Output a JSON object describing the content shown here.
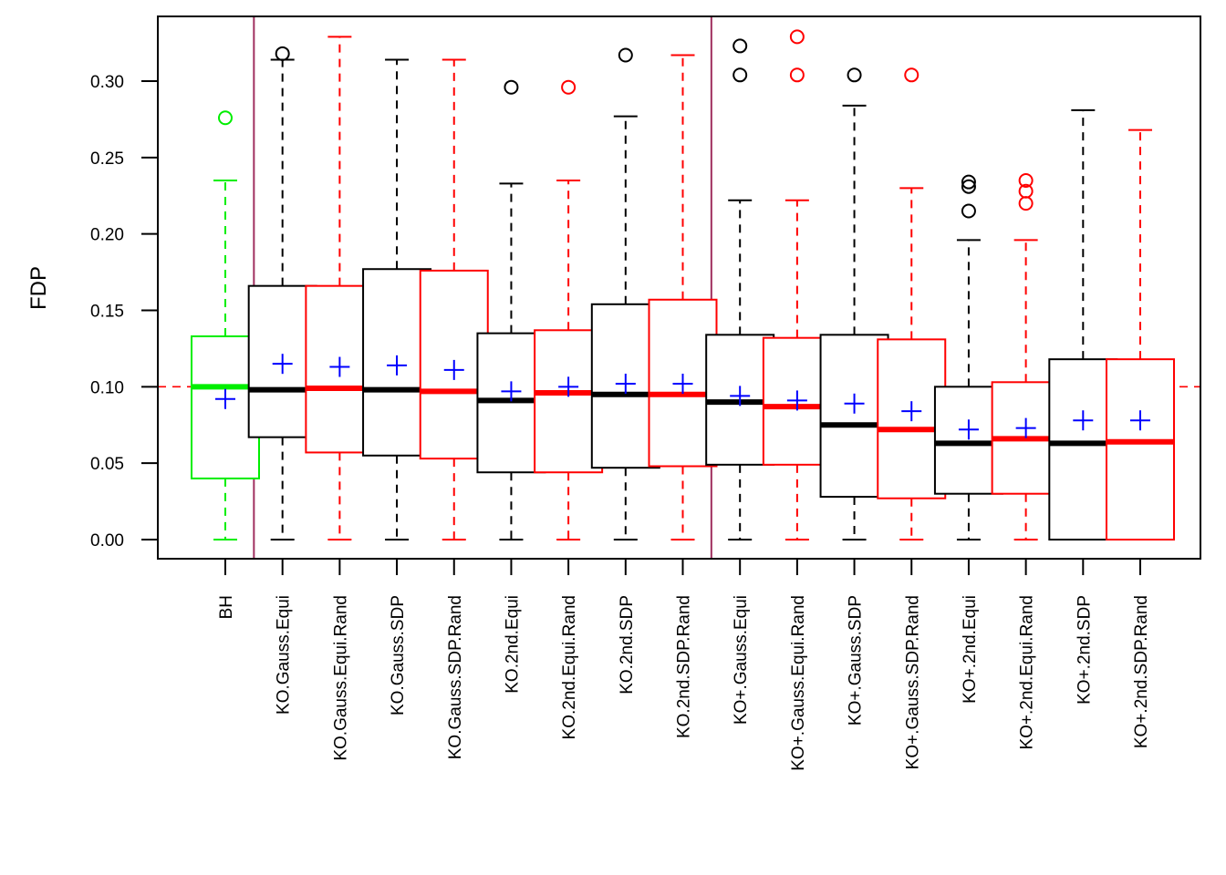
{
  "chart_data": {
    "type": "boxplot",
    "title": "",
    "xlabel": "",
    "ylabel": "FDP",
    "ylim": [
      -0.013,
      0.342
    ],
    "yticks": [
      0.0,
      0.05,
      0.1,
      0.15,
      0.2,
      0.25,
      0.3
    ],
    "ytick_labels": [
      "0.00",
      "0.05",
      "0.10",
      "0.15",
      "0.20",
      "0.25",
      "0.30"
    ],
    "reference_line": {
      "value": 0.1,
      "color": "#ff0000",
      "style": "dashed"
    },
    "group_separators_after_index": [
      0,
      8
    ],
    "separator_color": "#a0305f",
    "mean_marker": {
      "symbol": "+",
      "color": "#0000ff"
    },
    "categories": [
      "BH",
      "KO.Gauss.Equi",
      "KO.Gauss.Equi.Rand",
      "KO.Gauss.SDP",
      "KO.Gauss.SDP.Rand",
      "KO.2nd.Equi",
      "KO.2nd.Equi.Rand",
      "KO.2nd.SDP",
      "KO.2nd.SDP.Rand",
      "KO+.Gauss.Equi",
      "KO+.Gauss.Equi.Rand",
      "KO+.Gauss.SDP",
      "KO+.Gauss.SDP.Rand",
      "KO+.2nd.Equi",
      "KO+.2nd.Equi.Rand",
      "KO+.2nd.SDP",
      "KO+.2nd.SDP.Rand"
    ],
    "boxes": [
      {
        "name": "BH",
        "color": "#00ee00",
        "whisker_low": 0.0,
        "q1": 0.04,
        "median": 0.1,
        "q3": 0.133,
        "whisker_high": 0.235,
        "mean": 0.092,
        "outliers": [
          0.276
        ]
      },
      {
        "name": "KO.Gauss.Equi",
        "color": "#000000",
        "whisker_low": 0.0,
        "q1": 0.067,
        "median": 0.098,
        "q3": 0.166,
        "whisker_high": 0.314,
        "mean": 0.115,
        "outliers": [
          0.318
        ]
      },
      {
        "name": "KO.Gauss.Equi.Rand",
        "color": "#ff0000",
        "whisker_low": 0.0,
        "q1": 0.057,
        "median": 0.099,
        "q3": 0.166,
        "whisker_high": 0.329,
        "mean": 0.113,
        "outliers": []
      },
      {
        "name": "KO.Gauss.SDP",
        "color": "#000000",
        "whisker_low": 0.0,
        "q1": 0.055,
        "median": 0.098,
        "q3": 0.177,
        "whisker_high": 0.314,
        "mean": 0.114,
        "outliers": []
      },
      {
        "name": "KO.Gauss.SDP.Rand",
        "color": "#ff0000",
        "whisker_low": 0.0,
        "q1": 0.053,
        "median": 0.097,
        "q3": 0.176,
        "whisker_high": 0.314,
        "mean": 0.111,
        "outliers": []
      },
      {
        "name": "KO.2nd.Equi",
        "color": "#000000",
        "whisker_low": 0.0,
        "q1": 0.044,
        "median": 0.091,
        "q3": 0.135,
        "whisker_high": 0.233,
        "mean": 0.097,
        "outliers": [
          0.296
        ]
      },
      {
        "name": "KO.2nd.Equi.Rand",
        "color": "#ff0000",
        "whisker_low": 0.0,
        "q1": 0.044,
        "median": 0.096,
        "q3": 0.137,
        "whisker_high": 0.235,
        "mean": 0.1,
        "outliers": [
          0.296
        ]
      },
      {
        "name": "KO.2nd.SDP",
        "color": "#000000",
        "whisker_low": 0.0,
        "q1": 0.047,
        "median": 0.095,
        "q3": 0.154,
        "whisker_high": 0.277,
        "mean": 0.102,
        "outliers": [
          0.317
        ]
      },
      {
        "name": "KO.2nd.SDP.Rand",
        "color": "#ff0000",
        "whisker_low": 0.0,
        "q1": 0.048,
        "median": 0.095,
        "q3": 0.157,
        "whisker_high": 0.317,
        "mean": 0.102,
        "outliers": []
      },
      {
        "name": "KO+.Gauss.Equi",
        "color": "#000000",
        "whisker_low": 0.0,
        "q1": 0.049,
        "median": 0.09,
        "q3": 0.134,
        "whisker_high": 0.222,
        "mean": 0.094,
        "outliers": [
          0.304,
          0.323
        ]
      },
      {
        "name": "KO+.Gauss.Equi.Rand",
        "color": "#ff0000",
        "whisker_low": 0.0,
        "q1": 0.049,
        "median": 0.087,
        "q3": 0.132,
        "whisker_high": 0.222,
        "mean": 0.091,
        "outliers": [
          0.304,
          0.329
        ]
      },
      {
        "name": "KO+.Gauss.SDP",
        "color": "#000000",
        "whisker_low": 0.0,
        "q1": 0.028,
        "median": 0.075,
        "q3": 0.134,
        "whisker_high": 0.284,
        "mean": 0.089,
        "outliers": [
          0.304
        ]
      },
      {
        "name": "KO+.Gauss.SDP.Rand",
        "color": "#ff0000",
        "whisker_low": 0.0,
        "q1": 0.027,
        "median": 0.072,
        "q3": 0.131,
        "whisker_high": 0.23,
        "mean": 0.084,
        "outliers": [
          0.304
        ]
      },
      {
        "name": "KO+.2nd.Equi",
        "color": "#000000",
        "whisker_low": 0.0,
        "q1": 0.03,
        "median": 0.063,
        "q3": 0.1,
        "whisker_high": 0.196,
        "mean": 0.072,
        "outliers": [
          0.215,
          0.231,
          0.234
        ]
      },
      {
        "name": "KO+.2nd.Equi.Rand",
        "color": "#ff0000",
        "whisker_low": 0.0,
        "q1": 0.03,
        "median": 0.066,
        "q3": 0.103,
        "whisker_high": 0.196,
        "mean": 0.073,
        "outliers": [
          0.22,
          0.228,
          0.235
        ]
      },
      {
        "name": "KO+.2nd.SDP",
        "color": "#000000",
        "whisker_low": 0.0,
        "q1": 0.0,
        "median": 0.063,
        "q3": 0.118,
        "whisker_high": 0.281,
        "mean": 0.078,
        "outliers": []
      },
      {
        "name": "KO+.2nd.SDP.Rand",
        "color": "#ff0000",
        "whisker_low": 0.0,
        "q1": 0.0,
        "median": 0.064,
        "q3": 0.118,
        "whisker_high": 0.268,
        "mean": 0.078,
        "outliers": []
      }
    ],
    "grid": false,
    "legend": "none"
  }
}
